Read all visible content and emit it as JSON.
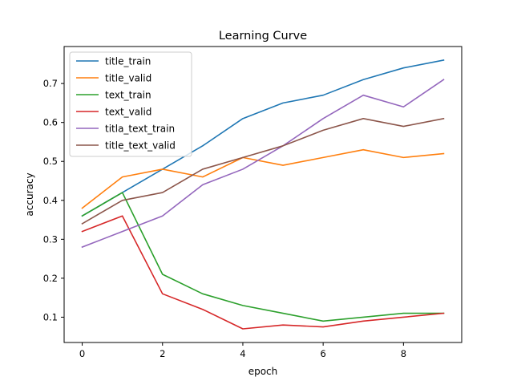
{
  "chart_data": {
    "type": "line",
    "title": "Learning Curve",
    "xlabel": "epoch",
    "ylabel": "accuracy",
    "xlim": [
      -0.45,
      9.45
    ],
    "ylim": [
      0.035,
      0.795
    ],
    "xticks": [
      0,
      2,
      4,
      6,
      8
    ],
    "yticks": [
      0.1,
      0.2,
      0.3,
      0.4,
      0.5,
      0.6,
      0.7
    ],
    "grid": false,
    "legend_position": "upper left",
    "x": [
      0,
      1,
      2,
      3,
      4,
      5,
      6,
      7,
      8,
      9
    ],
    "series": [
      {
        "name": "title_train",
        "color": "#1f77b4",
        "values": [
          0.36,
          0.42,
          0.48,
          0.54,
          0.61,
          0.65,
          0.67,
          0.71,
          0.74,
          0.76
        ]
      },
      {
        "name": "title_valid",
        "color": "#ff7f0e",
        "values": [
          0.38,
          0.46,
          0.48,
          0.46,
          0.51,
          0.49,
          0.51,
          0.53,
          0.51,
          0.52
        ]
      },
      {
        "name": "text_train",
        "color": "#2ca02c",
        "values": [
          0.36,
          0.42,
          0.21,
          0.16,
          0.13,
          0.11,
          0.09,
          0.1,
          0.11,
          0.11
        ]
      },
      {
        "name": "text_valid",
        "color": "#d62728",
        "values": [
          0.32,
          0.36,
          0.16,
          0.12,
          0.07,
          0.08,
          0.075,
          0.09,
          0.1,
          0.11
        ]
      },
      {
        "name": "titla_text_train",
        "color": "#9467bd",
        "values": [
          0.28,
          0.32,
          0.36,
          0.44,
          0.48,
          0.54,
          0.61,
          0.67,
          0.64,
          0.71
        ]
      },
      {
        "name": "title_text_valid",
        "color": "#8c564b",
        "values": [
          0.34,
          0.4,
          0.42,
          0.48,
          0.51,
          0.54,
          0.58,
          0.61,
          0.59,
          0.61
        ]
      }
    ]
  }
}
